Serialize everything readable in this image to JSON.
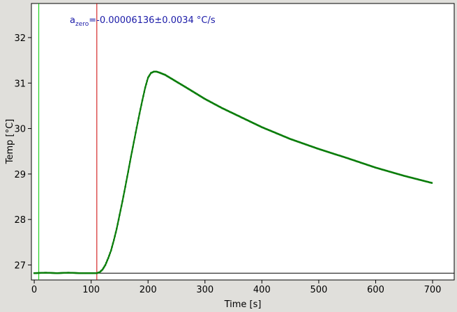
{
  "chart_data": {
    "type": "line",
    "title": "",
    "xlabel": "Time [s]",
    "ylabel": "Temp [°C]",
    "xlim": [
      -5,
      738
    ],
    "ylim": [
      26.67,
      32.75
    ],
    "x_ticks": [
      0,
      100,
      200,
      300,
      400,
      500,
      600,
      700
    ],
    "y_ticks": [
      27,
      28,
      29,
      30,
      31,
      32
    ],
    "grid": false,
    "legend": "none",
    "annotation": {
      "symbol_base": "a",
      "symbol_sub": "zero",
      "text": "=-0.00006136±0.0034 °C/s",
      "color": "#1a1aa8"
    },
    "markers": [
      {
        "x": 8,
        "color": "#00cc00"
      },
      {
        "x": 110,
        "color": "#cc0000"
      }
    ],
    "baseline": {
      "y": 26.82,
      "x_start": 0,
      "x_end": 738,
      "color": "#000000"
    },
    "series": [
      {
        "color": "#0a7d0a",
        "points": [
          [
            0,
            26.82
          ],
          [
            20,
            26.83
          ],
          [
            40,
            26.82
          ],
          [
            60,
            26.83
          ],
          [
            80,
            26.82
          ],
          [
            100,
            26.82
          ],
          [
            110,
            26.82
          ],
          [
            115,
            26.84
          ],
          [
            120,
            26.9
          ],
          [
            125,
            27.0
          ],
          [
            130,
            27.15
          ],
          [
            135,
            27.32
          ],
          [
            140,
            27.55
          ],
          [
            145,
            27.8
          ],
          [
            150,
            28.1
          ],
          [
            155,
            28.4
          ],
          [
            160,
            28.72
          ],
          [
            165,
            29.05
          ],
          [
            170,
            29.38
          ],
          [
            175,
            29.7
          ],
          [
            180,
            30.02
          ],
          [
            185,
            30.33
          ],
          [
            190,
            30.62
          ],
          [
            195,
            30.9
          ],
          [
            200,
            31.12
          ],
          [
            205,
            31.22
          ],
          [
            210,
            31.25
          ],
          [
            215,
            31.25
          ],
          [
            220,
            31.23
          ],
          [
            230,
            31.18
          ],
          [
            250,
            31.03
          ],
          [
            270,
            30.88
          ],
          [
            300,
            30.65
          ],
          [
            330,
            30.45
          ],
          [
            360,
            30.27
          ],
          [
            400,
            30.03
          ],
          [
            450,
            29.77
          ],
          [
            500,
            29.55
          ],
          [
            550,
            29.35
          ],
          [
            600,
            29.14
          ],
          [
            650,
            28.96
          ],
          [
            700,
            28.8
          ]
        ]
      }
    ]
  }
}
